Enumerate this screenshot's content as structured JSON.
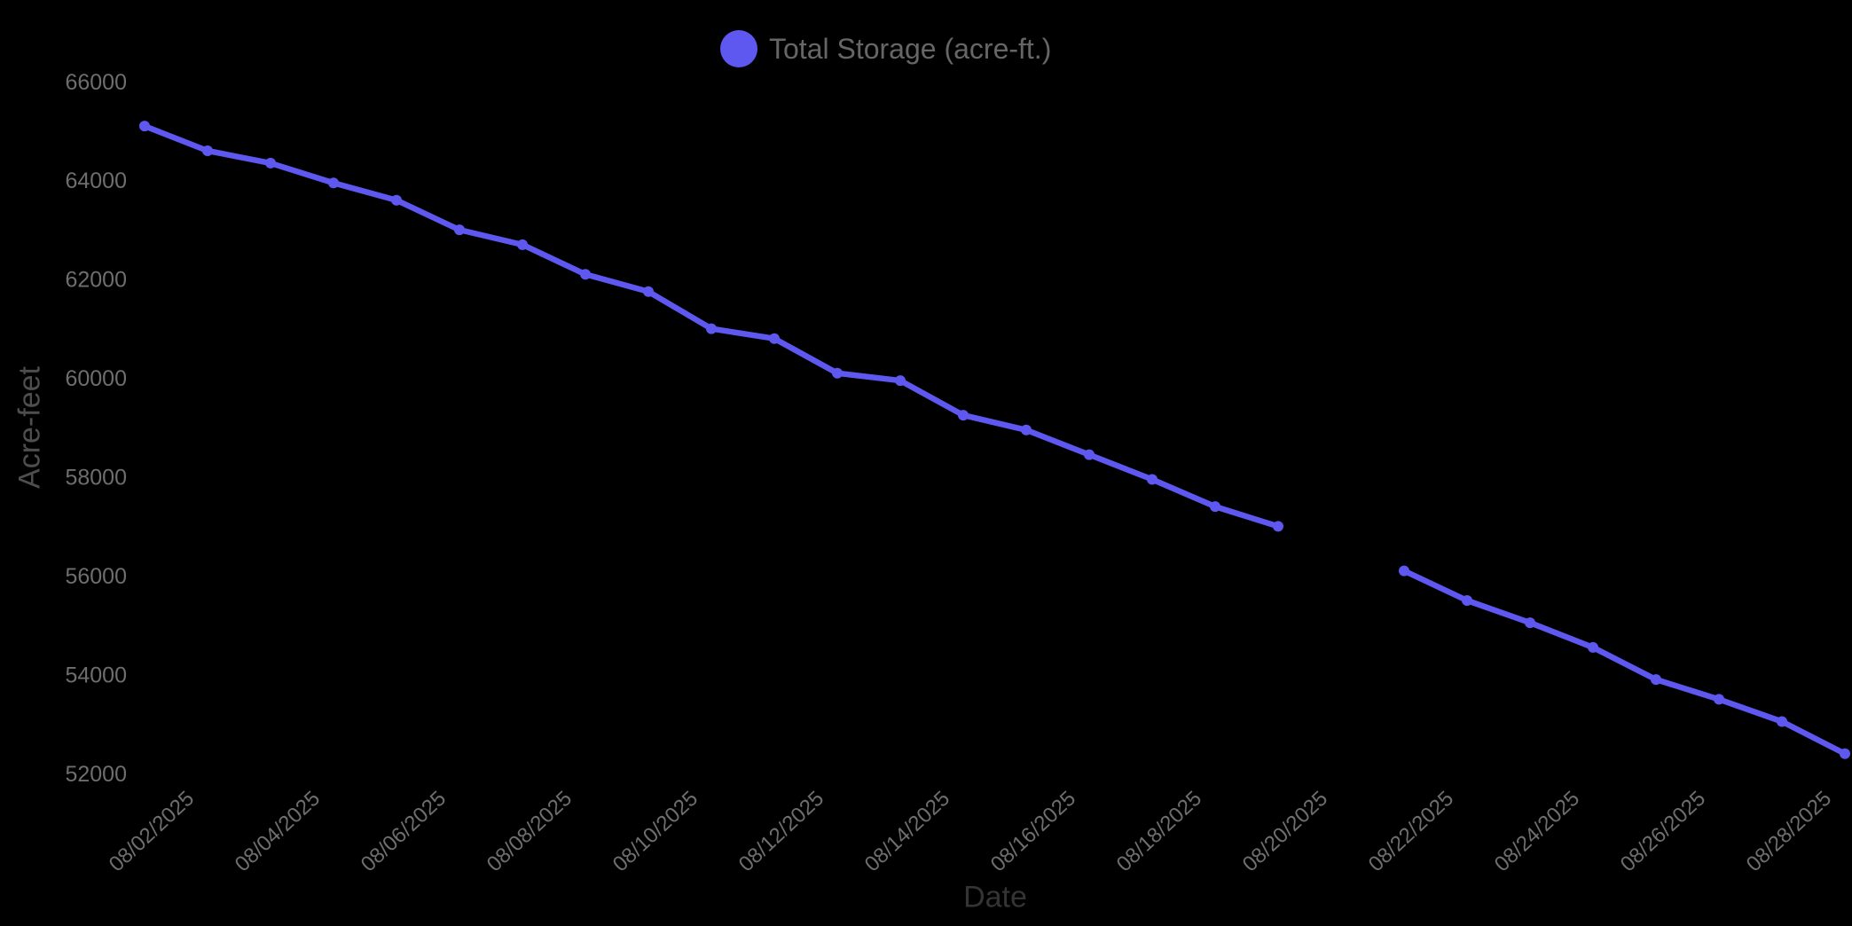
{
  "page": {
    "background": "#000000"
  },
  "chart_data": {
    "type": "line",
    "title": "",
    "xlabel": "Date",
    "ylabel": "Acre-feet",
    "legend": {
      "position": "top",
      "label": "Total Storage (acre-ft.)"
    },
    "x": [
      "08/01/2025",
      "08/02/2025",
      "08/03/2025",
      "08/04/2025",
      "08/05/2025",
      "08/06/2025",
      "08/07/2025",
      "08/08/2025",
      "08/09/2025",
      "08/10/2025",
      "08/11/2025",
      "08/12/2025",
      "08/13/2025",
      "08/14/2025",
      "08/15/2025",
      "08/16/2025",
      "08/17/2025",
      "08/18/2025",
      "08/19/2025",
      "08/20/2025",
      "08/21/2025",
      "08/22/2025",
      "08/23/2025",
      "08/24/2025",
      "08/25/2025",
      "08/26/2025",
      "08/27/2025",
      "08/28/2025"
    ],
    "series": [
      {
        "name": "Total Storage (acre-ft.)",
        "color": "#5e58f1",
        "values": [
          65100,
          64600,
          64350,
          63950,
          63600,
          63000,
          62700,
          62100,
          61750,
          61000,
          60800,
          60100,
          59950,
          59250,
          58950,
          58450,
          57950,
          57400,
          57000,
          null,
          56100,
          55500,
          55050,
          54550,
          53900,
          53500,
          53050,
          52400
        ]
      }
    ],
    "ylim": [
      52000,
      66000
    ],
    "ytick_labels": [
      "66000",
      "64000",
      "62000",
      "60000",
      "58000",
      "56000",
      "54000",
      "52000"
    ],
    "xtick_labels": [
      "08/02/2025",
      "08/04/2025",
      "08/06/2025",
      "08/08/2025",
      "08/10/2025",
      "08/12/2025",
      "08/14/2025",
      "08/16/2025",
      "08/18/2025",
      "08/20/2025",
      "08/22/2025",
      "08/24/2025",
      "08/26/2025",
      "08/28/2025"
    ],
    "grid": false,
    "gap_dates": [
      "08/20/2025"
    ]
  },
  "colors": {
    "background": "#000000",
    "line": "#5e58f1",
    "tick_label": "#6e6e6e",
    "legend_label": "#666666",
    "ylabel": "#4e4e4e",
    "xlabel": "#343434"
  }
}
